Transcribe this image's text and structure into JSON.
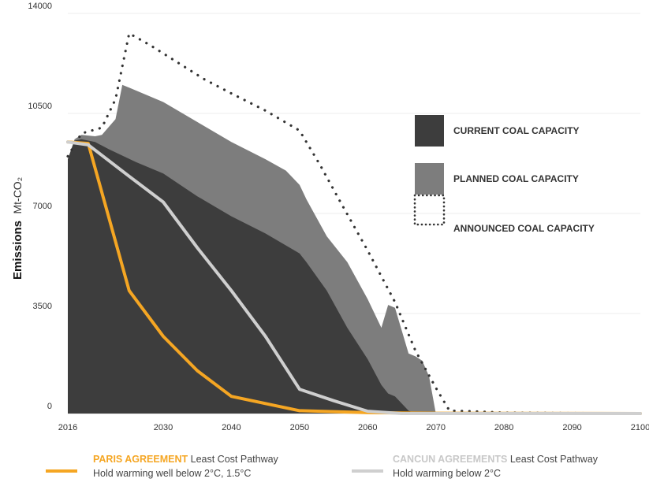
{
  "chart_data": {
    "type": "area",
    "xlabel": "",
    "ylabel": "Emissions",
    "ylabel_unit": "Mt-CO₂",
    "xlim": [
      2016,
      2100
    ],
    "ylim": [
      0,
      14000
    ],
    "xticks": [
      2016,
      2030,
      2040,
      2050,
      2060,
      2070,
      2080,
      2090,
      2100
    ],
    "yticks": [
      0,
      3500,
      7000,
      10500,
      14000
    ],
    "grid": true,
    "legend_position": "right",
    "legend": [
      {
        "label": "CURRENT COAL CAPACITY",
        "style": "solid",
        "color": "#3d3d3d"
      },
      {
        "label": "PLANNED COAL CAPACITY",
        "style": "solid",
        "color": "#7d7d7d"
      },
      {
        "label": "ANNOUNCED COAL CAPACITY",
        "style": "dotted",
        "color": "#333333"
      }
    ],
    "series": [
      {
        "name": "CURRENT COAL CAPACITY",
        "kind": "area",
        "color": "#3d3d3d",
        "points": [
          [
            2016,
            8900
          ],
          [
            2017,
            9550
          ],
          [
            2018,
            9600
          ],
          [
            2020,
            9500
          ],
          [
            2022,
            9250
          ],
          [
            2026,
            8800
          ],
          [
            2030,
            8400
          ],
          [
            2035,
            7600
          ],
          [
            2040,
            6900
          ],
          [
            2045,
            6300
          ],
          [
            2050,
            5600
          ],
          [
            2051,
            5300
          ],
          [
            2054,
            4300
          ],
          [
            2057,
            3000
          ],
          [
            2060,
            1900
          ],
          [
            2062,
            1000
          ],
          [
            2063,
            700
          ],
          [
            2064,
            600
          ],
          [
            2066,
            100
          ],
          [
            2067,
            0
          ],
          [
            2100,
            0
          ]
        ]
      },
      {
        "name": "PLANNED COAL CAPACITY",
        "kind": "area",
        "color": "#7d7d7d",
        "points": [
          [
            2016,
            8900
          ],
          [
            2017,
            9600
          ],
          [
            2018,
            9750
          ],
          [
            2020,
            9700
          ],
          [
            2021,
            9750
          ],
          [
            2023,
            10300
          ],
          [
            2024,
            11500
          ],
          [
            2025,
            11400
          ],
          [
            2030,
            10900
          ],
          [
            2035,
            10200
          ],
          [
            2040,
            9500
          ],
          [
            2045,
            8900
          ],
          [
            2048,
            8500
          ],
          [
            2050,
            8000
          ],
          [
            2051,
            7500
          ],
          [
            2054,
            6200
          ],
          [
            2057,
            5300
          ],
          [
            2060,
            4000
          ],
          [
            2062,
            3000
          ],
          [
            2063,
            3800
          ],
          [
            2064,
            3700
          ],
          [
            2066,
            2100
          ],
          [
            2067,
            2000
          ],
          [
            2068,
            1850
          ],
          [
            2069,
            1300
          ],
          [
            2070,
            0
          ],
          [
            2100,
            0
          ]
        ]
      },
      {
        "name": "ANNOUNCED COAL CAPACITY",
        "kind": "dotted-line",
        "color": "#333333",
        "points": [
          [
            2016,
            9000
          ],
          [
            2018,
            9800
          ],
          [
            2021,
            10000
          ],
          [
            2023,
            11000
          ],
          [
            2025,
            13300
          ],
          [
            2028,
            12900
          ],
          [
            2032,
            12300
          ],
          [
            2036,
            11700
          ],
          [
            2040,
            11200
          ],
          [
            2045,
            10600
          ],
          [
            2050,
            9900
          ],
          [
            2053,
            8700
          ],
          [
            2056,
            7400
          ],
          [
            2060,
            5700
          ],
          [
            2064,
            3900
          ],
          [
            2067,
            2200
          ],
          [
            2070,
            900
          ],
          [
            2072,
            100
          ],
          [
            2075,
            80
          ],
          [
            2080,
            30
          ],
          [
            2100,
            0
          ]
        ]
      },
      {
        "name": "PARIS AGREEMENT",
        "kind": "line",
        "color": "#f5a623",
        "points": [
          [
            2016,
            9500
          ],
          [
            2019,
            9450
          ],
          [
            2025,
            4300
          ],
          [
            2030,
            2700
          ],
          [
            2035,
            1500
          ],
          [
            2040,
            600
          ],
          [
            2045,
            350
          ],
          [
            2050,
            100
          ],
          [
            2060,
            30
          ],
          [
            2070,
            10
          ],
          [
            2100,
            0
          ]
        ]
      },
      {
        "name": "CANCUN AGREEMENTS",
        "kind": "line",
        "color": "#cfcfcf",
        "points": [
          [
            2016,
            9500
          ],
          [
            2019,
            9400
          ],
          [
            2025,
            8300
          ],
          [
            2030,
            7400
          ],
          [
            2035,
            5800
          ],
          [
            2040,
            4300
          ],
          [
            2045,
            2700
          ],
          [
            2050,
            850
          ],
          [
            2055,
            450
          ],
          [
            2060,
            80
          ],
          [
            2065,
            0
          ],
          [
            2100,
            0
          ]
        ]
      }
    ]
  },
  "bottom_legend": [
    {
      "highlight": "PARIS AGREEMENT",
      "text": " Least Cost Pathway",
      "subtext": "Hold warming well below 2°C, 1.5°C",
      "color": "#f5a623"
    },
    {
      "highlight": "CANCUN AGREEMENTS",
      "text": " Least Cost Pathway",
      "subtext": "Hold warming below 2°C",
      "color": "#cfcfcf"
    }
  ]
}
